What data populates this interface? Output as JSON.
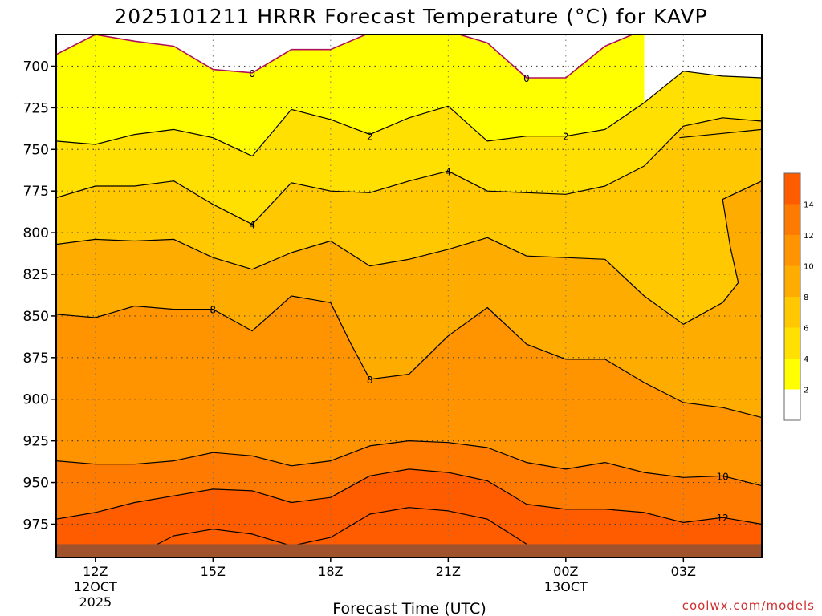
{
  "chart_data": {
    "type": "heatmap",
    "title": "2025101211 HRRR Forecast Temperature (°C) for KAVP",
    "xlabel": "Forecast Time (UTC)",
    "ylabel": "",
    "credit": "coolwx.com/models",
    "x_range_hours": [
      11,
      29
    ],
    "y_range_hpa": [
      681,
      995
    ],
    "y_ticks": [
      700,
      725,
      750,
      775,
      800,
      825,
      850,
      875,
      900,
      925,
      950,
      975
    ],
    "x_ticks": [
      {
        "hour": 12,
        "label": "12Z",
        "sub1": "12OCT",
        "sub2": "2025"
      },
      {
        "hour": 15,
        "label": "15Z",
        "sub1": "",
        "sub2": ""
      },
      {
        "hour": 18,
        "label": "18Z",
        "sub1": "",
        "sub2": ""
      },
      {
        "hour": 21,
        "label": "21Z",
        "sub1": "",
        "sub2": ""
      },
      {
        "hour": 24,
        "label": "00Z",
        "sub1": "13OCT",
        "sub2": ""
      },
      {
        "hour": 27,
        "label": "03Z",
        "sub1": "",
        "sub2": ""
      }
    ],
    "colorbar": {
      "bounds": [
        0,
        2,
        4,
        6,
        8,
        10,
        12,
        14,
        16
      ],
      "colors": [
        "#ffffff",
        "#ffff00",
        "#ffe000",
        "#ffc800",
        "#ffac00",
        "#ff9400",
        "#ff7a00",
        "#ff5c00"
      ],
      "labels": [
        "2",
        "4",
        "6",
        "8",
        "10",
        "12",
        "14"
      ]
    },
    "surface_color": "#a0522d",
    "surface_pressure_hpa": 987,
    "contours": [
      {
        "level": 0,
        "points": [
          [
            11,
            693
          ],
          [
            12,
            681
          ],
          [
            13,
            685
          ],
          [
            14,
            688
          ],
          [
            15,
            702
          ],
          [
            16,
            704
          ],
          [
            17,
            690
          ],
          [
            18,
            690
          ],
          [
            19,
            680
          ],
          [
            20,
            679
          ],
          [
            21,
            679
          ],
          [
            22,
            686
          ],
          [
            23,
            707
          ],
          [
            24,
            707
          ],
          [
            25,
            688
          ],
          [
            26,
            678
          ]
        ],
        "label": "0",
        "label_at": [
          [
            16,
            704
          ],
          [
            23,
            707
          ]
        ]
      },
      {
        "level": 2,
        "points": [
          [
            11,
            745
          ],
          [
            12,
            747
          ],
          [
            13,
            741
          ],
          [
            14,
            738
          ],
          [
            15,
            743
          ],
          [
            16,
            754
          ],
          [
            17,
            726
          ],
          [
            18,
            732
          ],
          [
            19,
            741
          ],
          [
            20,
            731
          ],
          [
            21,
            724
          ],
          [
            22,
            745
          ],
          [
            23,
            742
          ],
          [
            24,
            742
          ],
          [
            25,
            738
          ],
          [
            26,
            722
          ],
          [
            27,
            703
          ],
          [
            28,
            706
          ],
          [
            29,
            707
          ]
        ],
        "label": "2",
        "label_at": [
          [
            19,
            742
          ],
          [
            24,
            742
          ]
        ]
      },
      {
        "level": 2,
        "points": [
          [
            26.9,
            743
          ],
          [
            29,
            738
          ]
        ],
        "label": "",
        "label_at": []
      },
      {
        "level": 4,
        "points": [
          [
            11,
            779
          ],
          [
            12,
            772
          ],
          [
            13,
            772
          ],
          [
            14,
            769
          ],
          [
            15,
            783
          ],
          [
            16,
            795
          ],
          [
            17,
            770
          ],
          [
            18,
            775
          ],
          [
            19,
            776
          ],
          [
            20,
            769
          ],
          [
            21,
            763
          ],
          [
            22,
            775
          ],
          [
            23,
            776
          ],
          [
            24,
            777
          ],
          [
            25,
            772
          ],
          [
            26,
            760
          ],
          [
            27,
            736
          ],
          [
            28,
            731
          ],
          [
            29,
            733
          ]
        ],
        "label": "4",
        "label_at": [
          [
            16,
            795
          ],
          [
            21,
            763
          ]
        ]
      },
      {
        "level": 6,
        "points": [
          [
            11,
            807
          ],
          [
            12,
            804
          ],
          [
            13,
            805
          ],
          [
            14,
            804
          ],
          [
            15,
            815
          ],
          [
            16,
            822
          ],
          [
            17,
            812
          ],
          [
            18,
            805
          ],
          [
            19,
            820
          ],
          [
            20,
            816
          ],
          [
            21,
            810
          ],
          [
            22,
            803
          ],
          [
            23,
            814
          ],
          [
            24,
            815
          ],
          [
            25,
            816
          ],
          [
            26,
            838
          ],
          [
            27,
            855
          ],
          [
            28,
            842
          ],
          [
            28.4,
            830
          ],
          [
            28.2,
            809
          ],
          [
            28,
            780
          ],
          [
            29,
            769
          ]
        ],
        "label": "",
        "label_at": []
      },
      {
        "level": 8,
        "points": [
          [
            11,
            849
          ],
          [
            12,
            851
          ],
          [
            13,
            844
          ],
          [
            14,
            846
          ],
          [
            15,
            846
          ],
          [
            16,
            859
          ],
          [
            17,
            838
          ],
          [
            18,
            842
          ],
          [
            18.5,
            866
          ],
          [
            19,
            888
          ],
          [
            20,
            885
          ],
          [
            21,
            862
          ],
          [
            22,
            845
          ],
          [
            23,
            867
          ],
          [
            24,
            876
          ],
          [
            25,
            876
          ],
          [
            26,
            890
          ],
          [
            27,
            902
          ],
          [
            28,
            905
          ],
          [
            29,
            911
          ]
        ],
        "label": "8",
        "label_at": [
          [
            15,
            846
          ],
          [
            19,
            888
          ]
        ]
      },
      {
        "level": 10,
        "points": [
          [
            11,
            937
          ],
          [
            12,
            939
          ],
          [
            13,
            939
          ],
          [
            14,
            937
          ],
          [
            15,
            932
          ],
          [
            16,
            934
          ],
          [
            17,
            940
          ],
          [
            18,
            937
          ],
          [
            19,
            928
          ],
          [
            20,
            925
          ],
          [
            21,
            926
          ],
          [
            22,
            929
          ],
          [
            23,
            938
          ],
          [
            24,
            942
          ],
          [
            25,
            938
          ],
          [
            26,
            944
          ],
          [
            27,
            947
          ],
          [
            28,
            946
          ],
          [
            29,
            952
          ]
        ],
        "label": "10",
        "label_at": [
          [
            28,
            946
          ]
        ]
      },
      {
        "level": 12,
        "points": [
          [
            11,
            972
          ],
          [
            12,
            968
          ],
          [
            13,
            962
          ],
          [
            14,
            958
          ],
          [
            15,
            954
          ],
          [
            16,
            955
          ],
          [
            17,
            962
          ],
          [
            18,
            959
          ],
          [
            19,
            946
          ],
          [
            20,
            942
          ],
          [
            21,
            944
          ],
          [
            22,
            949
          ],
          [
            23,
            963
          ],
          [
            24,
            966
          ],
          [
            25,
            966
          ],
          [
            26,
            968
          ],
          [
            27,
            974
          ],
          [
            28,
            971
          ],
          [
            29,
            975
          ]
        ],
        "label": "12",
        "label_at": [
          [
            28,
            971
          ]
        ]
      },
      {
        "level": 14,
        "points": [
          [
            13.5,
            988
          ],
          [
            14,
            982
          ],
          [
            15,
            978
          ],
          [
            16,
            981
          ],
          [
            17,
            988
          ],
          [
            18,
            983
          ],
          [
            19,
            969
          ],
          [
            20,
            965
          ],
          [
            21,
            967
          ],
          [
            22,
            972
          ],
          [
            23,
            987
          ]
        ],
        "label": "",
        "label_at": []
      }
    ]
  }
}
